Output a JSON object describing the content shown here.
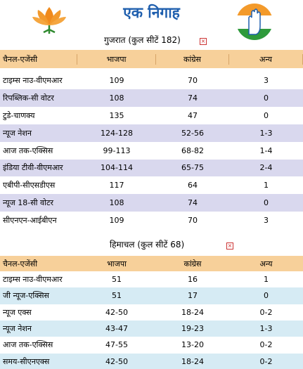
{
  "header": {
    "title": "एक निगाह"
  },
  "gujarat": {
    "title": "गुजरात (कुल सीटें 182)",
    "columns": [
      "चैनल-एजेंसी",
      "भाजपा",
      "कांग्रेस",
      "अन्य"
    ],
    "rows": [
      [
        "टाइम्स नाउ-वीएमआर",
        "109",
        "70",
        "3"
      ],
      [
        "रिपब्लिक-सी वोटर",
        "108",
        "74",
        "0"
      ],
      [
        "टुडे-चाणक्य",
        "135",
        "47",
        "0"
      ],
      [
        "न्यूज नेशन",
        "124-128",
        "52-56",
        "1-3"
      ],
      [
        "आज तक-एक्सिस",
        "99-113",
        "68-82",
        "1-4"
      ],
      [
        "इंडिया टीवी-वीएमआर",
        "104-114",
        "65-75",
        "2-4"
      ],
      [
        "एबीपी-सीएसडीएस",
        "117",
        "64",
        "1"
      ],
      [
        "न्यूज 18-सी वोटर",
        "108",
        "74",
        "0"
      ],
      [
        "सीएनएन-आईबीएन",
        "109",
        "70",
        "3"
      ]
    ]
  },
  "himachal": {
    "title": "हिमाचल (कुल सीटें 68)",
    "columns": [
      "चैनल-एजेंसी",
      "भाजपा",
      "कांग्रेस",
      "अन्य"
    ],
    "rows": [
      [
        "टाइम्स नाउ-वीएमआर",
        "51",
        "16",
        "1"
      ],
      [
        "जी न्यूज-एक्सिस",
        "51",
        "17",
        "0"
      ],
      [
        "न्यूज एक्स",
        "42-50",
        "18-24",
        "0-2"
      ],
      [
        "न्यूज नेशन",
        "43-47",
        "19-23",
        "1-3"
      ],
      [
        "आज तक-एक्सिस",
        "47-55",
        "13-20",
        "0-2"
      ],
      [
        "समय-सीएनएक्स",
        "42-50",
        "18-24",
        "0-2"
      ]
    ]
  }
}
